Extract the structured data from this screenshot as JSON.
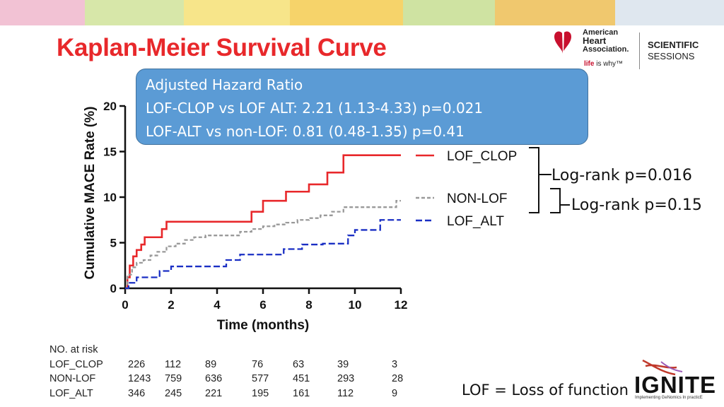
{
  "colors": {
    "title": "#e8282b",
    "lof_clop": "#e8282b",
    "non_lof": "#999999",
    "lof_alt": "#1a2fc4",
    "box": "#5b9bd5"
  },
  "page": {
    "title": "Kaplan-Meier Survival Curve"
  },
  "logos": {
    "aha_lines": [
      "American",
      "Heart",
      "Association."
    ],
    "aha_tagline_prefix": "life",
    "aha_tagline_suffix": "is why™",
    "sessions_line1": "SCIENTIFIC",
    "sessions_line2": "SESSIONS",
    "ignite_word": "IGNITE",
    "ignite_subtitle": "Implementing GeNomics In practicE"
  },
  "hazard_box": {
    "heading": "Adjusted Hazard Ratio",
    "line1": "LOF-CLOP vs LOF ALT: 2.21 (1.13-4.33)  p=0.021",
    "line2": "LOF-ALT vs non-LOF: 0.81 (0.48-1.35)  p=0.41"
  },
  "annotations": {
    "logrank_1": "Log-rank p=0.016",
    "logrank_2": "Log-rank p=0.15",
    "footnote": "LOF = Loss of function"
  },
  "chart_data": {
    "type": "line",
    "subtype": "kaplan-meier step",
    "xlabel": "Time (months)",
    "ylabel": "Cumulative MACE Rate (%)",
    "xlim": [
      0,
      12
    ],
    "ylim": [
      0,
      20
    ],
    "xticks": [
      0,
      2,
      4,
      6,
      8,
      10,
      12
    ],
    "yticks": [
      0,
      5,
      10,
      15,
      20
    ],
    "legend_position": "right",
    "series": [
      {
        "name": "LOF_CLOP",
        "style": "solid",
        "color": "#e8282b",
        "x": [
          0,
          0.1,
          0.2,
          0.35,
          0.5,
          0.7,
          0.85,
          1.6,
          1.8,
          4.6,
          5.5,
          6.0,
          7.0,
          8.0,
          8.8,
          9.5,
          12.0
        ],
        "y": [
          0,
          1.2,
          2.5,
          3.5,
          4.2,
          4.8,
          5.6,
          6.5,
          7.3,
          7.3,
          8.4,
          9.6,
          10.6,
          11.4,
          12.7,
          14.6,
          14.6
        ]
      },
      {
        "name": "NON-LOF",
        "style": "dashed",
        "color": "#999999",
        "x": [
          0,
          0.1,
          0.3,
          0.5,
          0.8,
          1.1,
          1.4,
          1.8,
          2.2,
          2.6,
          3.0,
          3.5,
          4.5,
          5.0,
          5.5,
          6.0,
          6.5,
          7.0,
          7.5,
          8.0,
          8.5,
          9.0,
          9.5,
          10.0,
          11.5,
          11.8,
          12.0
        ],
        "y": [
          0,
          1.5,
          2.3,
          2.8,
          3.1,
          3.6,
          4.0,
          4.6,
          4.9,
          5.3,
          5.6,
          5.8,
          5.8,
          6.2,
          6.5,
          6.8,
          7.0,
          7.2,
          7.5,
          7.7,
          8.0,
          8.4,
          8.9,
          8.9,
          8.9,
          9.6,
          9.6
        ]
      },
      {
        "name": "LOF_ALT",
        "style": "dashed",
        "color": "#1a2fc4",
        "x": [
          0,
          0.15,
          0.5,
          1.5,
          2.0,
          4.4,
          5.0,
          6.9,
          7.7,
          8.6,
          9.7,
          10.0,
          11.1,
          12.0
        ],
        "y": [
          0,
          0.6,
          1.2,
          1.9,
          2.4,
          3.1,
          3.7,
          4.3,
          4.8,
          4.9,
          5.8,
          6.4,
          7.5,
          7.5
        ]
      }
    ],
    "risk_table": {
      "title": "NO. at risk",
      "columns": [
        "0",
        "2",
        "4",
        "6",
        "8",
        "10",
        "12"
      ],
      "rows": [
        {
          "label": "LOF_CLOP",
          "values": [
            "226",
            "112",
            "89",
            "76",
            "63",
            "39",
            "3"
          ]
        },
        {
          "label": "NON-LOF",
          "values": [
            "1243",
            "759",
            "636",
            "577",
            "451",
            "293",
            "28"
          ]
        },
        {
          "label": "LOF_ALT",
          "values": [
            "346",
            "245",
            "221",
            "195",
            "161",
            "112",
            "9"
          ]
        }
      ]
    }
  }
}
